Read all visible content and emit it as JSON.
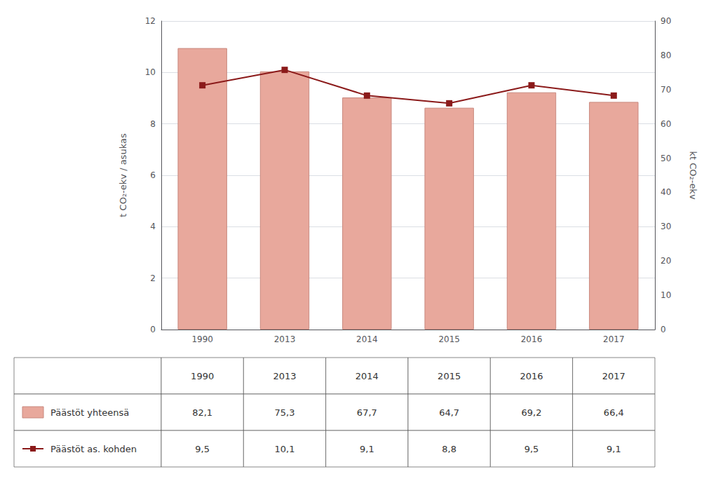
{
  "chart_data": {
    "type": "bar",
    "categories": [
      "1990",
      "2013",
      "2014",
      "2015",
      "2016",
      "2017"
    ],
    "series": [
      {
        "name": "Päästöt yhteensä",
        "type": "bar",
        "axis": "y2",
        "color": "#e8a89c",
        "values": [
          82.1,
          75.3,
          67.7,
          64.7,
          69.2,
          66.4
        ],
        "value_labels": [
          "82,1",
          "75,3",
          "67,7",
          "64,7",
          "69,2",
          "66,4"
        ]
      },
      {
        "name": "Päästöt as. kohden",
        "type": "line",
        "color": "#8b1a1a",
        "marker": "square",
        "values": [
          9.5,
          10.1,
          9.1,
          8.8,
          9.5,
          9.1
        ],
        "value_labels": [
          "9,5",
          "10,1",
          "9,1",
          "8,8",
          "9,5",
          "9,1"
        ]
      }
    ],
    "ylabel": "t CO₂-ekv / asukas",
    "y2label": "kt CO₂-ekv",
    "ylim": [
      0,
      12
    ],
    "yticks": [
      0,
      2,
      4,
      6,
      8,
      10,
      12
    ],
    "y2lim": [
      0,
      90
    ],
    "y2ticks": [
      0,
      10,
      20,
      30,
      40,
      50,
      60,
      70,
      80,
      90
    ],
    "grid": true
  }
}
